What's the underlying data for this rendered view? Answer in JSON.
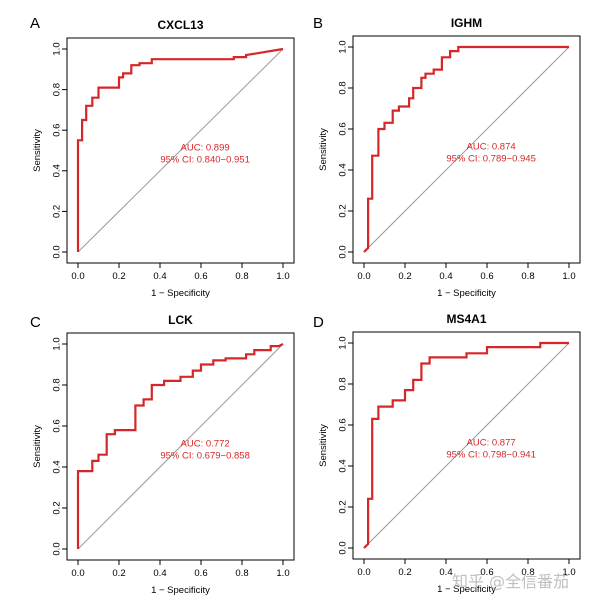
{
  "colors": {
    "roc": "#d62728",
    "diagonal": "#9a9a9a",
    "axis": "#000000",
    "auc_text": "#d62728"
  },
  "watermark": "知乎 @全信番茄",
  "chart_data": [
    {
      "type": "line",
      "panel": "A",
      "title": "CXCL13",
      "xlabel": "1 − Specificity",
      "ylabel": "Sensitivity",
      "xlim": [
        0,
        1
      ],
      "ylim": [
        0,
        1
      ],
      "xticks": [
        "0.0",
        "0.2",
        "0.4",
        "0.6",
        "0.8",
        "1.0"
      ],
      "yticks": [
        "0.0",
        "0.2",
        "0.4",
        "0.6",
        "0.8",
        "1.0"
      ],
      "auc_label": "AUC: 0.899",
      "ci_label": "95% CI: 0.840−0.951",
      "x": [
        0,
        0,
        0.02,
        0.02,
        0.04,
        0.04,
        0.07,
        0.07,
        0.1,
        0.1,
        0.14,
        0.14,
        0.2,
        0.2,
        0.22,
        0.22,
        0.26,
        0.26,
        0.3,
        0.3,
        0.36,
        0.36,
        0.76,
        0.76,
        0.82,
        0.82,
        0.88,
        1.0
      ],
      "y": [
        0,
        0.55,
        0.55,
        0.65,
        0.65,
        0.72,
        0.72,
        0.76,
        0.76,
        0.81,
        0.81,
        0.81,
        0.81,
        0.86,
        0.86,
        0.88,
        0.88,
        0.92,
        0.92,
        0.93,
        0.93,
        0.95,
        0.95,
        0.96,
        0.96,
        0.97,
        0.98,
        1.0
      ]
    },
    {
      "type": "line",
      "panel": "B",
      "title": "IGHM",
      "xlabel": "1 − Specificity",
      "ylabel": "Sensitivity",
      "xlim": [
        0,
        1
      ],
      "ylim": [
        0,
        1
      ],
      "xticks": [
        "0.0",
        "0.2",
        "0.4",
        "0.6",
        "0.8",
        "1.0"
      ],
      "yticks": [
        "0.0",
        "0.2",
        "0.4",
        "0.6",
        "0.8",
        "1.0"
      ],
      "auc_label": "AUC: 0.874",
      "ci_label": "95% CI: 0.789−0.945",
      "x": [
        0,
        0.02,
        0.02,
        0.04,
        0.04,
        0.07,
        0.07,
        0.1,
        0.1,
        0.14,
        0.14,
        0.17,
        0.17,
        0.22,
        0.22,
        0.24,
        0.24,
        0.28,
        0.28,
        0.3,
        0.3,
        0.34,
        0.34,
        0.38,
        0.38,
        0.42,
        0.42,
        0.46,
        0.46,
        1.0
      ],
      "y": [
        0,
        0.02,
        0.26,
        0.26,
        0.47,
        0.47,
        0.6,
        0.6,
        0.63,
        0.63,
        0.69,
        0.69,
        0.71,
        0.71,
        0.75,
        0.75,
        0.8,
        0.8,
        0.85,
        0.85,
        0.87,
        0.87,
        0.89,
        0.89,
        0.95,
        0.95,
        0.98,
        0.98,
        1.0,
        1.0
      ]
    },
    {
      "type": "line",
      "panel": "C",
      "title": "LCK",
      "xlabel": "1 − Specificity",
      "ylabel": "Sensitivity",
      "xlim": [
        0,
        1
      ],
      "ylim": [
        0,
        1
      ],
      "xticks": [
        "0.0",
        "0.2",
        "0.4",
        "0.6",
        "0.8",
        "1.0"
      ],
      "yticks": [
        "0.0",
        "0.2",
        "0.4",
        "0.6",
        "0.8",
        "1.0"
      ],
      "auc_label": "AUC: 0.772",
      "ci_label": "95% CI: 0.679−0.858",
      "x": [
        0,
        0,
        0.07,
        0.07,
        0.1,
        0.1,
        0.14,
        0.14,
        0.18,
        0.18,
        0.28,
        0.28,
        0.32,
        0.32,
        0.36,
        0.36,
        0.42,
        0.42,
        0.5,
        0.5,
        0.56,
        0.56,
        0.6,
        0.6,
        0.66,
        0.66,
        0.72,
        0.72,
        0.82,
        0.82,
        0.86,
        0.86,
        0.94,
        0.94,
        0.98,
        1.0
      ],
      "y": [
        0,
        0.38,
        0.38,
        0.43,
        0.43,
        0.46,
        0.46,
        0.56,
        0.56,
        0.58,
        0.58,
        0.7,
        0.7,
        0.73,
        0.73,
        0.8,
        0.8,
        0.82,
        0.82,
        0.84,
        0.84,
        0.87,
        0.87,
        0.9,
        0.9,
        0.92,
        0.92,
        0.93,
        0.93,
        0.95,
        0.95,
        0.97,
        0.97,
        0.99,
        0.99,
        1.0
      ]
    },
    {
      "type": "line",
      "panel": "D",
      "title": "MS4A1",
      "xlabel": "1 − Specificity",
      "ylabel": "Sensitivity",
      "xlim": [
        0,
        1
      ],
      "ylim": [
        0,
        1
      ],
      "xticks": [
        "0.0",
        "0.2",
        "0.4",
        "0.6",
        "0.8",
        "1.0"
      ],
      "yticks": [
        "0.0",
        "0.2",
        "0.4",
        "0.6",
        "0.8",
        "1.0"
      ],
      "auc_label": "AUC: 0.877",
      "ci_label": "95% CI: 0.798−0.941",
      "x": [
        0,
        0.02,
        0.02,
        0.04,
        0.04,
        0.07,
        0.07,
        0.14,
        0.14,
        0.2,
        0.2,
        0.24,
        0.24,
        0.28,
        0.28,
        0.32,
        0.32,
        0.5,
        0.5,
        0.6,
        0.6,
        0.86,
        0.86,
        1.0
      ],
      "y": [
        0,
        0.02,
        0.24,
        0.24,
        0.63,
        0.63,
        0.69,
        0.69,
        0.72,
        0.72,
        0.77,
        0.77,
        0.82,
        0.82,
        0.9,
        0.9,
        0.93,
        0.93,
        0.95,
        0.95,
        0.98,
        0.98,
        1.0,
        1.0
      ]
    }
  ]
}
